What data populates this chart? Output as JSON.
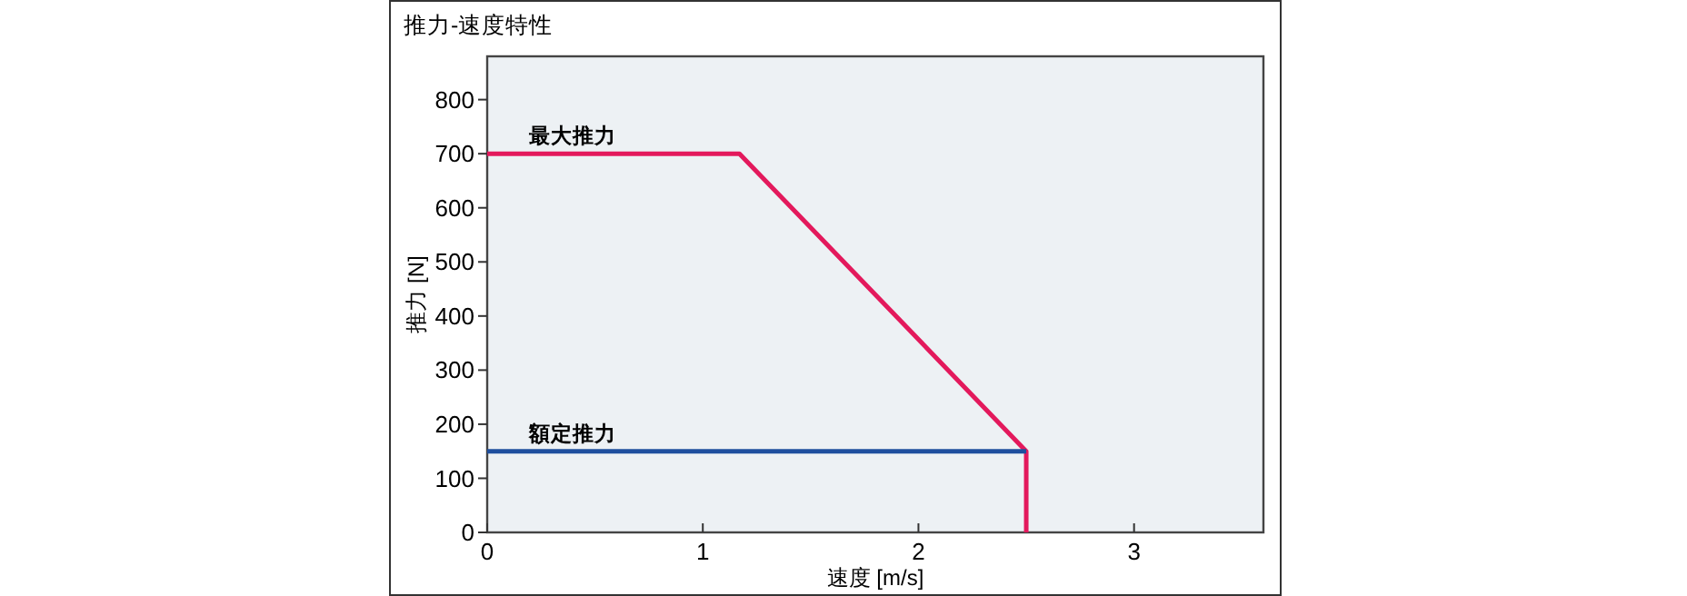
{
  "chart_data": {
    "type": "line",
    "title": "推力-速度特性",
    "xlabel": "速度 [m/s]",
    "ylabel": "推力 [N]",
    "series": [
      {
        "name": "最大推力",
        "color": "#e3195c",
        "x": [
          0,
          1.17,
          2.5,
          2.5
        ],
        "values": [
          700,
          700,
          150,
          0
        ]
      },
      {
        "name": "額定推力",
        "color": "#1f4f9e",
        "x": [
          0,
          2.5
        ],
        "values": [
          150,
          150
        ]
      }
    ],
    "xlim": [
      0,
      3.6
    ],
    "xticks": [
      0,
      1,
      2,
      3
    ],
    "ylim": [
      0,
      880
    ],
    "yticks": [
      0,
      100,
      200,
      300,
      400,
      500,
      600,
      700,
      800
    ],
    "marker": "none",
    "line_style": "solid"
  }
}
